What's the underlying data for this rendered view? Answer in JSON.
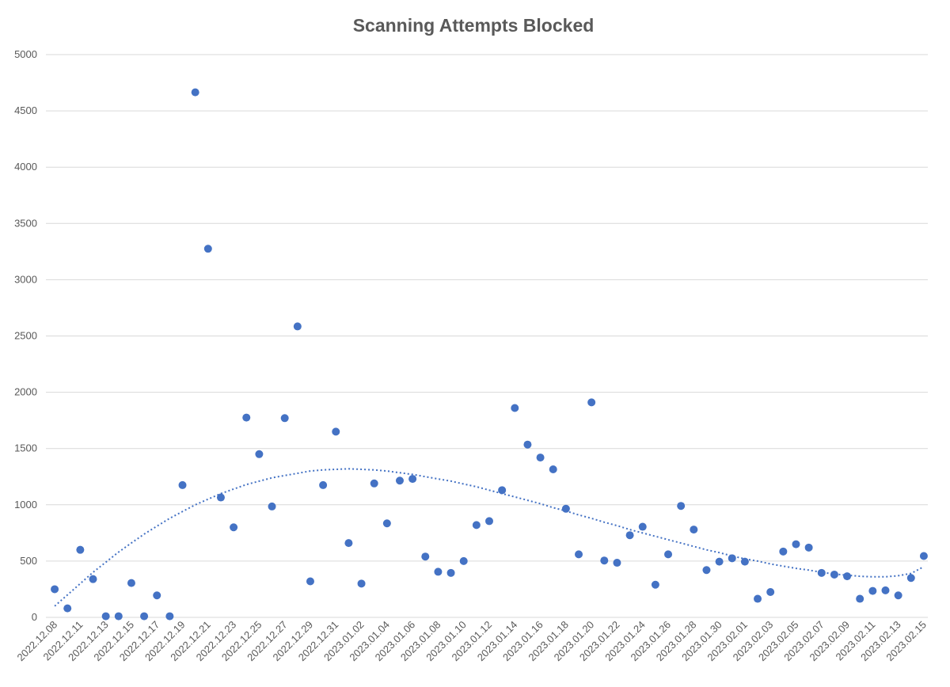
{
  "chart_data": {
    "type": "scatter",
    "title": "Scanning Attempts Blocked",
    "categories": [
      "2022.12.08",
      null,
      "2022.12.11",
      null,
      "2022.12.13",
      null,
      "2022.12.15",
      null,
      "2022.12.17",
      null,
      "2022.12.19",
      null,
      "2022.12.21",
      null,
      "2022.12.23",
      null,
      "2022.12.25",
      null,
      "2022.12.27",
      null,
      "2022.12.29",
      null,
      "2022.12.31",
      null,
      "2023.01.02",
      null,
      "2023.01.04",
      null,
      "2023.01.06",
      null,
      "2023.01.08",
      null,
      "2023.01.10",
      null,
      "2023.01.12",
      null,
      "2023.01.14",
      null,
      "2023.01.16",
      null,
      "2023.01.18",
      null,
      "2023.01.20",
      null,
      "2023.01.22",
      null,
      "2023.01.24",
      null,
      "2023.01.26",
      null,
      "2023.01.28",
      null,
      "2023.01.30",
      null,
      "2023.02.01",
      null,
      "2023.02.03",
      null,
      "2023.02.05",
      null,
      "2023.02.07",
      null,
      "2023.02.09",
      null,
      "2023.02.11",
      null,
      "2023.02.13",
      null,
      "2023.02.15"
    ],
    "values": [
      250,
      80,
      600,
      340,
      10,
      10,
      305,
      10,
      195,
      10,
      1175,
      4665,
      3275,
      1065,
      800,
      1775,
      1450,
      985,
      1770,
      2585,
      320,
      1175,
      1650,
      660,
      300,
      1190,
      835,
      1215,
      1230,
      540,
      405,
      395,
      500,
      820,
      855,
      1130,
      1860,
      1535,
      1420,
      1315,
      965,
      560,
      1910,
      505,
      485,
      730,
      805,
      290,
      560,
      990,
      780,
      420,
      495,
      525,
      495,
      165,
      225,
      585,
      650,
      620,
      395,
      380,
      365,
      165,
      235,
      240,
      195,
      350,
      545
    ],
    "color": "#4472c4",
    "trendline": {
      "color": "#4472c4",
      "style": "dotted",
      "values": [
        100,
        200,
        300,
        400,
        490,
        580,
        660,
        740,
        810,
        880,
        940,
        1000,
        1050,
        1100,
        1140,
        1180,
        1210,
        1240,
        1260,
        1280,
        1300,
        1310,
        1315,
        1320,
        1315,
        1310,
        1300,
        1285,
        1270,
        1250,
        1230,
        1210,
        1185,
        1160,
        1130,
        1100,
        1070,
        1040,
        1010,
        975,
        945,
        910,
        880,
        845,
        815,
        780,
        750,
        720,
        690,
        660,
        630,
        600,
        575,
        545,
        520,
        500,
        475,
        455,
        435,
        420,
        400,
        385,
        375,
        365,
        360,
        360,
        370,
        390,
        450
      ]
    },
    "ylim": [
      0,
      5000
    ],
    "yticks": [
      0,
      500,
      1000,
      1500,
      2000,
      2500,
      3000,
      3500,
      4000,
      4500,
      5000
    ],
    "grid": true
  }
}
